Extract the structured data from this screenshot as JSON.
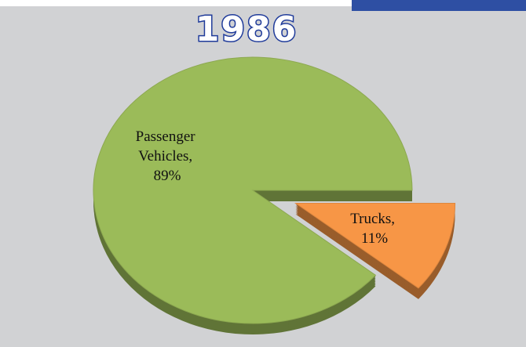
{
  "chart_data": {
    "type": "pie",
    "title": "1986",
    "categories": [
      "Passenger Vehicles",
      "Trucks"
    ],
    "values": [
      89,
      11
    ],
    "value_labels": [
      "Passenger Vehicles, 89%",
      "Trucks, 11%"
    ],
    "colors": [
      "#9bbb59",
      "#f79646"
    ]
  }
}
